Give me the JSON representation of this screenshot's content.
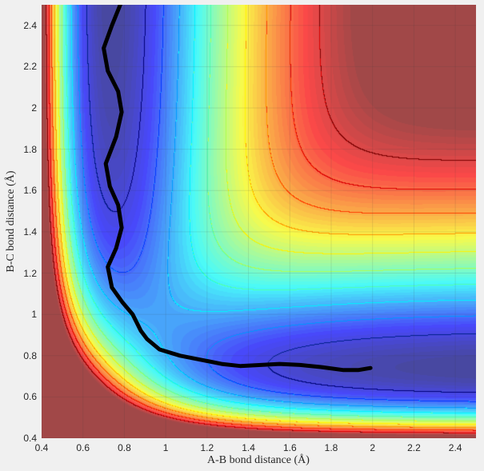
{
  "chart_data": {
    "type": "contour",
    "title": "",
    "xlabel": "A-B bond distance (Å)",
    "ylabel": "B-C bond distance (Å)",
    "xlim": [
      0.4,
      2.5
    ],
    "ylim": [
      0.4,
      2.5
    ],
    "xticks": [
      "0.4",
      "0.6",
      "0.8",
      "1",
      "1.2",
      "1.4",
      "1.6",
      "1.8",
      "2",
      "2.2",
      "2.4"
    ],
    "yticks": [
      "0.4",
      "0.6",
      "0.8",
      "1",
      "1.2",
      "1.4",
      "1.6",
      "1.8",
      "2",
      "2.2",
      "2.4"
    ],
    "colormap": "jet",
    "surface": "collinear A-B-C potential energy surface (symmetric valley near 0.74 Å)",
    "trajectory_color": "#000000",
    "trajectory": [
      [
        0.78,
        2.5
      ],
      [
        0.74,
        2.4
      ],
      [
        0.7,
        2.29
      ],
      [
        0.72,
        2.18
      ],
      [
        0.77,
        2.08
      ],
      [
        0.787,
        1.98
      ],
      [
        0.76,
        1.86
      ],
      [
        0.71,
        1.73
      ],
      [
        0.73,
        1.62
      ],
      [
        0.77,
        1.53
      ],
      [
        0.787,
        1.42
      ],
      [
        0.76,
        1.32
      ],
      [
        0.72,
        1.23
      ],
      [
        0.74,
        1.13
      ],
      [
        0.79,
        1.06
      ],
      [
        0.84,
        1.0
      ],
      [
        0.88,
        0.92
      ],
      [
        0.91,
        0.88
      ],
      [
        0.97,
        0.83
      ],
      [
        1.07,
        0.8
      ],
      [
        1.17,
        0.78
      ],
      [
        1.27,
        0.76
      ],
      [
        1.36,
        0.75
      ],
      [
        1.46,
        0.755
      ],
      [
        1.55,
        0.76
      ],
      [
        1.65,
        0.755
      ],
      [
        1.75,
        0.745
      ],
      [
        1.86,
        0.73
      ],
      [
        1.93,
        0.73
      ],
      [
        1.99,
        0.74
      ]
    ]
  }
}
